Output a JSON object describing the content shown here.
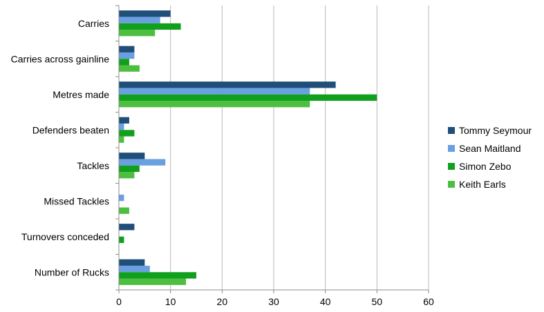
{
  "chart_data": {
    "type": "bar",
    "orientation": "horizontal",
    "title": "",
    "xlabel": "",
    "ylabel": "",
    "categories": [
      "Carries",
      "Carries across gainline",
      "Metres made",
      "Defenders beaten",
      "Tackles",
      "Missed Tackles",
      "Turnovers conceded",
      "Number of Rucks"
    ],
    "series": [
      {
        "name": "Tommy Seymour",
        "color": "#1f4e79",
        "values": [
          10,
          3,
          42,
          2,
          5,
          0,
          3,
          5
        ]
      },
      {
        "name": "Sean Maitland",
        "color": "#6a9fe0",
        "values": [
          8,
          3,
          37,
          1,
          9,
          1,
          0,
          6
        ]
      },
      {
        "name": "Simon Zebo",
        "color": "#119f1e",
        "values": [
          12,
          2,
          50,
          3,
          4,
          0,
          1,
          15
        ]
      },
      {
        "name": "Keith Earls",
        "color": "#4dbe3f",
        "values": [
          7,
          4,
          37,
          1,
          3,
          2,
          0,
          13
        ]
      }
    ],
    "xlim": [
      0,
      60
    ],
    "xticks": [
      "0",
      "10",
      "20",
      "30",
      "40",
      "50",
      "60"
    ],
    "grid": true,
    "legend_position": "right"
  }
}
